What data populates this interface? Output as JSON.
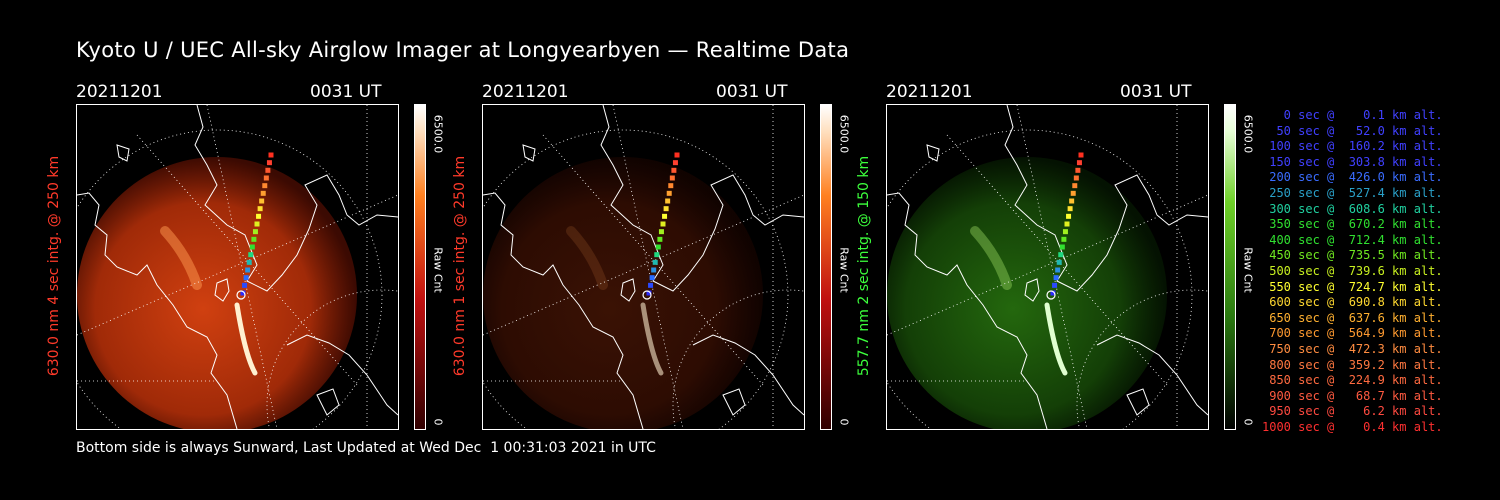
{
  "title": "Kyoto U / UEC All-sky Airglow Imager at Longyearbyen — Realtime Data",
  "footer": "Bottom side is always Sunward, Last Updated at Wed Dec  1 00:31:03 2021 in UTC",
  "panels": [
    {
      "date": "20211201",
      "time": "0031 UT",
      "ylabel": "630.0 nm 4 sec intg. @ 250 km",
      "ylabel_color": "#ff3a2a",
      "cbar_max": "6500.0",
      "cbar_min": "0",
      "cbar_label": "Raw Cnt",
      "tint": "red",
      "brightness": 1.0
    },
    {
      "date": "20211201",
      "time": "0031 UT",
      "ylabel": "630.0 nm 1 sec intg. @ 250 km",
      "ylabel_color": "#ff3a2a",
      "cbar_max": "6500.0",
      "cbar_min": "0",
      "cbar_label": "Raw Cnt",
      "tint": "red",
      "brightness": 0.28
    },
    {
      "date": "20211201",
      "time": "0031 UT",
      "ylabel": "557.7 nm 2 sec intg. @ 150 km",
      "ylabel_color": "#3cff3c",
      "cbar_max": "6500.0",
      "cbar_min": "0",
      "cbar_label": "Raw Cnt",
      "tint": "green",
      "brightness": 0.85
    }
  ],
  "legend": [
    {
      "text": "   0 sec @    0.1 km alt.",
      "color": "#4040ff"
    },
    {
      "text": "  50 sec @   52.0 km alt.",
      "color": "#4040ff"
    },
    {
      "text": " 100 sec @  160.2 km alt.",
      "color": "#4040ff"
    },
    {
      "text": " 150 sec @  303.8 km alt.",
      "color": "#4040ff"
    },
    {
      "text": " 200 sec @  426.0 km alt.",
      "color": "#3a6cff"
    },
    {
      "text": " 250 sec @  527.4 km alt.",
      "color": "#2aa0c8"
    },
    {
      "text": " 300 sec @  608.6 km alt.",
      "color": "#20d0a0"
    },
    {
      "text": " 350 sec @  670.2 km alt.",
      "color": "#30e030"
    },
    {
      "text": " 400 sec @  712.4 km alt.",
      "color": "#30e030"
    },
    {
      "text": " 450 sec @  735.5 km alt.",
      "color": "#70e820"
    },
    {
      "text": " 500 sec @  739.6 km alt.",
      "color": "#c8f020"
    },
    {
      "text": " 550 sec @  724.7 km alt.",
      "color": "#ffff30"
    },
    {
      "text": " 600 sec @  690.8 km alt.",
      "color": "#ffd830"
    },
    {
      "text": " 650 sec @  637.6 km alt.",
      "color": "#ffb030"
    },
    {
      "text": " 700 sec @  564.9 km alt.",
      "color": "#ff9a30"
    },
    {
      "text": " 750 sec @  472.3 km alt.",
      "color": "#ff8c40"
    },
    {
      "text": " 800 sec @  359.2 km alt.",
      "color": "#ff7840"
    },
    {
      "text": " 850 sec @  224.9 km alt.",
      "color": "#ff6a40"
    },
    {
      "text": " 900 sec @   68.7 km alt.",
      "color": "#ff5a40"
    },
    {
      "text": " 950 sec @    6.2 km alt.",
      "color": "#ff4a40"
    },
    {
      "text": "1000 sec @    0.4 km alt.",
      "color": "#ff3030"
    }
  ]
}
